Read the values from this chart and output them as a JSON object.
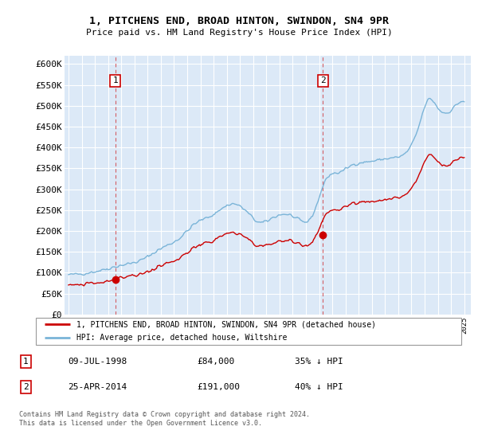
{
  "title": "1, PITCHENS END, BROAD HINTON, SWINDON, SN4 9PR",
  "subtitle": "Price paid vs. HM Land Registry's House Price Index (HPI)",
  "ylim": [
    0,
    620000
  ],
  "yticks": [
    0,
    50000,
    100000,
    150000,
    200000,
    250000,
    300000,
    350000,
    400000,
    450000,
    500000,
    550000,
    600000
  ],
  "background_color": "#dce9f7",
  "hpi_color": "#7ab4d8",
  "price_color": "#cc0000",
  "legend1": "1, PITCHENS END, BROAD HINTON, SWINDON, SN4 9PR (detached house)",
  "legend2": "HPI: Average price, detached house, Wiltshire",
  "note1_date": "09-JUL-1998",
  "note1_price": "£84,000",
  "note1_hpi": "35% ↓ HPI",
  "note2_date": "25-APR-2014",
  "note2_price": "£191,000",
  "note2_hpi": "40% ↓ HPI",
  "footer": "Contains HM Land Registry data © Crown copyright and database right 2024.\nThis data is licensed under the Open Government Licence v3.0.",
  "sale1_year": 1998.54,
  "sale1_val": 84000,
  "sale2_year": 2014.29,
  "sale2_val": 191000,
  "xlim_left": 1994.7,
  "xlim_right": 2025.5
}
